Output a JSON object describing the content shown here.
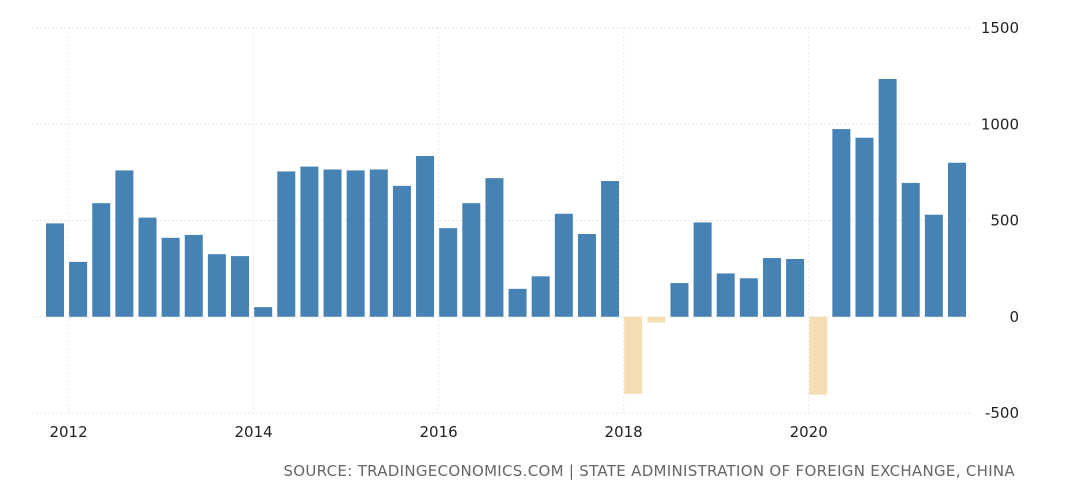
{
  "chart_data": {
    "type": "bar",
    "title": "",
    "xlabel": "",
    "ylabel": "",
    "ylim": [
      -500,
      1500
    ],
    "y_ticks": [
      "1500",
      "1000",
      "500",
      "0",
      "-500"
    ],
    "x_ticks": [
      "2012",
      "2014",
      "2016",
      "2018",
      "2020"
    ],
    "categories": [
      "2011Q4",
      "2012Q1",
      "2012Q2",
      "2012Q3",
      "2012Q4",
      "2013Q1",
      "2013Q2",
      "2013Q3",
      "2013Q4",
      "2014Q1",
      "2014Q2",
      "2014Q3",
      "2014Q4",
      "2015Q1",
      "2015Q2",
      "2015Q3",
      "2015Q4",
      "2016Q1",
      "2016Q2",
      "2016Q3",
      "2016Q4",
      "2017Q1",
      "2017Q2",
      "2017Q3",
      "2017Q4",
      "2018Q1",
      "2018Q2",
      "2018Q3",
      "2018Q4",
      "2019Q1",
      "2019Q2",
      "2019Q3",
      "2019Q4",
      "2020Q1",
      "2020Q2",
      "2020Q3",
      "2020Q4",
      "2021Q1",
      "2021Q2",
      "2021Q3"
    ],
    "values": [
      485,
      285,
      590,
      760,
      515,
      410,
      425,
      325,
      315,
      50,
      755,
      780,
      765,
      760,
      765,
      680,
      835,
      460,
      590,
      720,
      145,
      210,
      535,
      430,
      705,
      -400,
      -30,
      175,
      490,
      225,
      200,
      305,
      300,
      -405,
      975,
      930,
      1235,
      695,
      530,
      800
    ],
    "positive_color": "#4682b4",
    "negative_color": "#f5deb3",
    "grid": true,
    "legend": "none"
  },
  "footer": {
    "source_text": "SOURCE: TRADINGECONOMICS.COM | STATE ADMINISTRATION OF FOREIGN EXCHANGE, CHINA"
  }
}
